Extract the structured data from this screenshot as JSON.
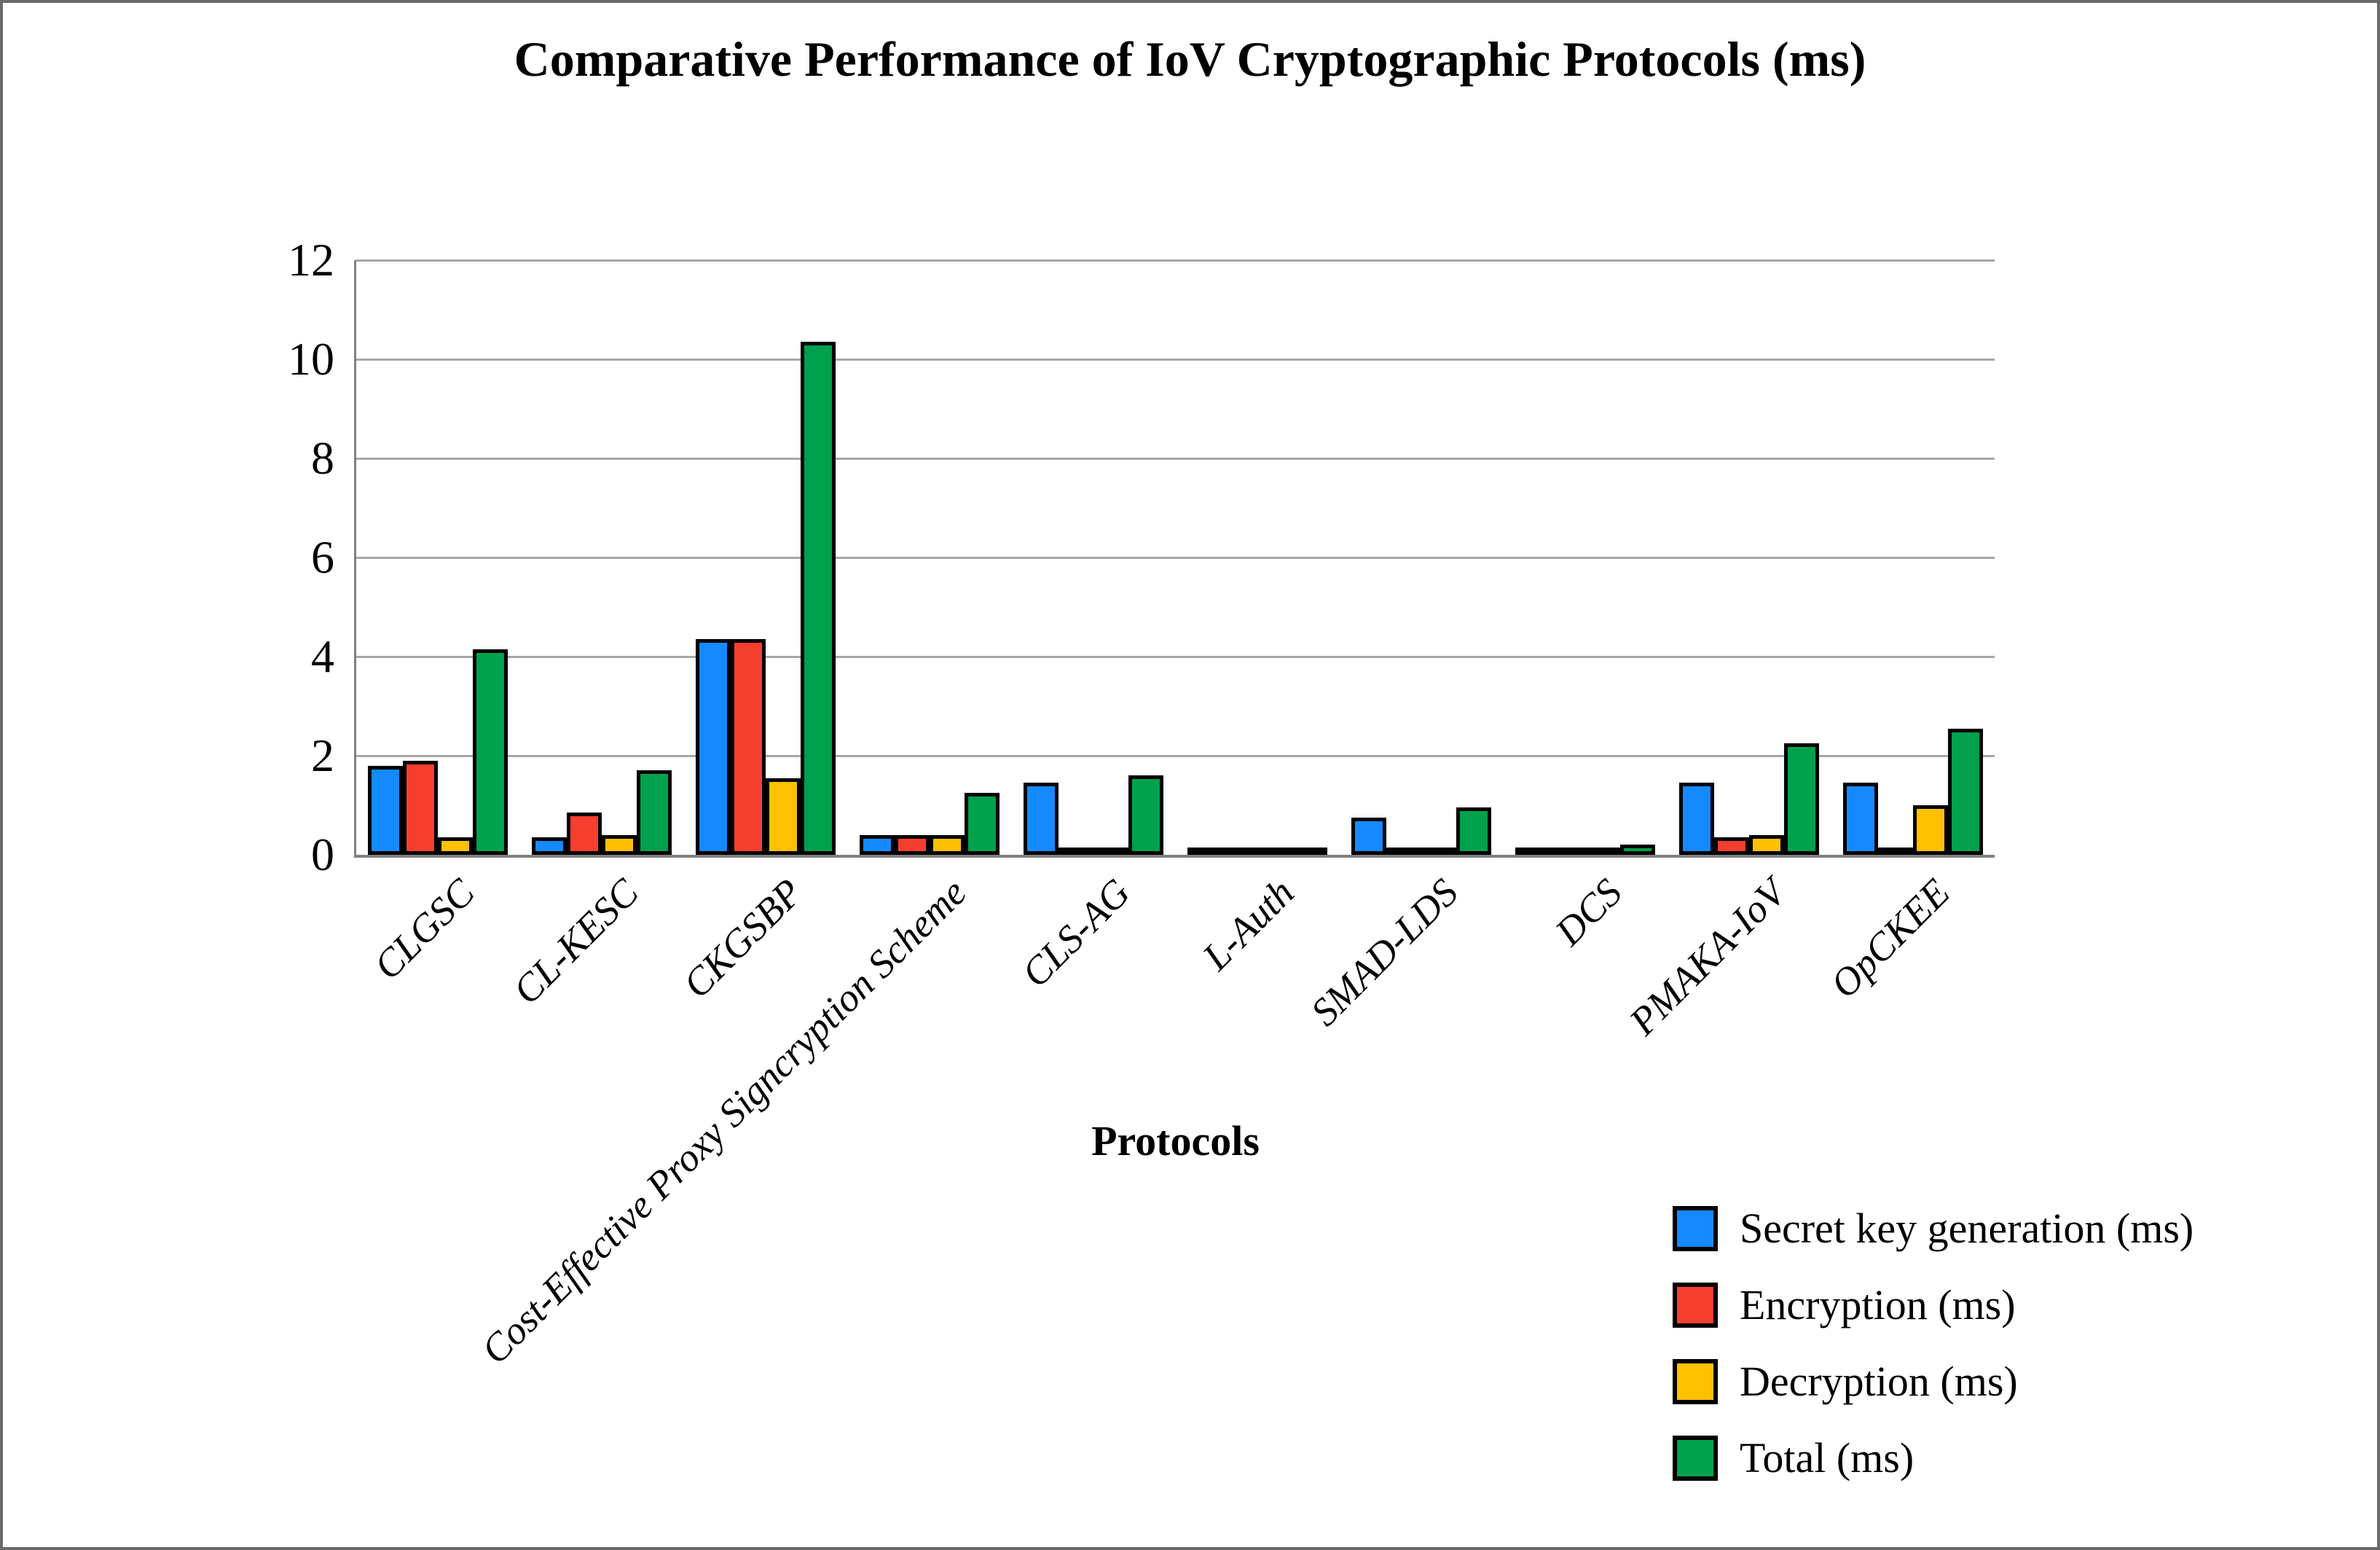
{
  "chart_data": {
    "type": "bar",
    "title": "Comparative Performance of IoV Cryptographic Protocols (ms)",
    "xlabel": "Protocols",
    "ylabel": "",
    "ylim": [
      0,
      12
    ],
    "yticks": [
      0,
      2,
      4,
      6,
      8,
      10,
      12
    ],
    "grid": "horizontal",
    "legend_position": "bottom-right",
    "categories": [
      "CLGSC",
      "CL-KESC",
      "CKGSBP",
      "Cost-Effective Proxy Signcryption Scheme",
      "CLS-AG",
      "L-Auth",
      "SMAD-LDS",
      "DCS",
      "PMAKA-IoV",
      "OpCKEE"
    ],
    "series": [
      {
        "name": "Secret key generation (ms)",
        "color": "#1589FF",
        "values": [
          1.8,
          0.35,
          4.35,
          0.4,
          1.45,
          0.05,
          0.75,
          0.05,
          1.45,
          1.45
        ]
      },
      {
        "name": "Encryption (ms)",
        "color": "#F63E2E",
        "values": [
          1.9,
          0.85,
          4.35,
          0.4,
          0.02,
          0.02,
          0.05,
          0.05,
          0.35,
          0.02
        ]
      },
      {
        "name": "Decryption (ms)",
        "color": "#FFC000",
        "values": [
          0.35,
          0.4,
          1.55,
          0.4,
          0.02,
          0.02,
          0.02,
          0.02,
          0.4,
          1.0
        ]
      },
      {
        "name": "Total (ms)",
        "color": "#00A14D",
        "values": [
          4.15,
          1.7,
          10.35,
          1.25,
          1.6,
          0.15,
          0.95,
          0.2,
          2.25,
          2.55
        ]
      }
    ],
    "colors": {
      "gridline": "#a6a6a6",
      "axis": "#808080",
      "bar_outline": "#000000",
      "frame_border": "#6a6a6a",
      "background": "#ffffff"
    }
  }
}
